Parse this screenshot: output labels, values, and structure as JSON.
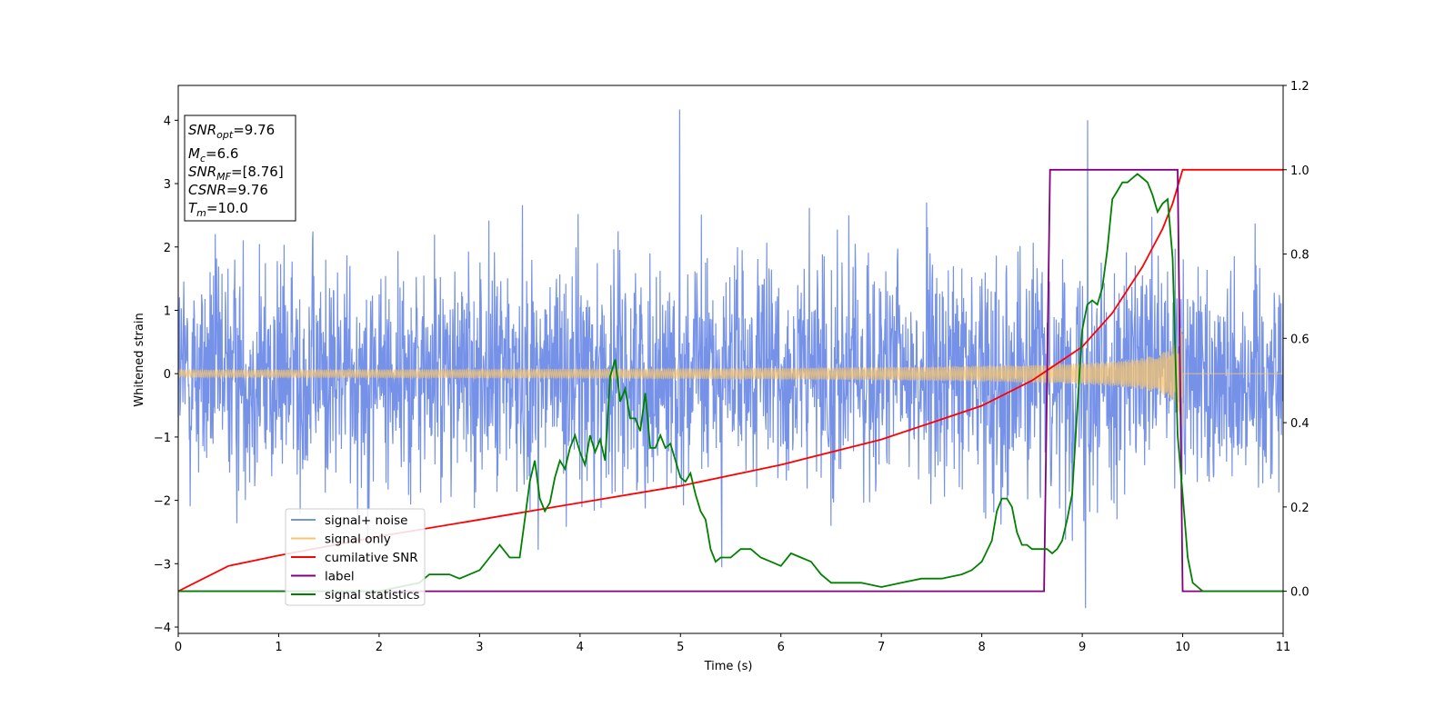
{
  "chart_data": {
    "type": "line",
    "xlabel": "Time (s)",
    "ylabel": "Whitened strain",
    "xlim": [
      0,
      11
    ],
    "ylim_left": [
      -4.1,
      4.55
    ],
    "ylim_right": [
      -0.1,
      1.2
    ],
    "x_ticks": [
      "0",
      "1",
      "2",
      "3",
      "4",
      "5",
      "6",
      "7",
      "8",
      "9",
      "10",
      "11"
    ],
    "y_left_ticks": [
      "4",
      "3",
      "2",
      "1",
      "0",
      "−1",
      "−2",
      "−3",
      "−4"
    ],
    "y_left_tick_values": [
      4,
      3,
      2,
      1,
      0,
      -1,
      -2,
      -3,
      -4
    ],
    "y_right_ticks": [
      "1.2",
      "1.0",
      "0.8",
      "0.6",
      "0.4",
      "0.2",
      "0.0"
    ],
    "y_right_tick_values": [
      1.2,
      1.0,
      0.8,
      0.6,
      0.4,
      0.2,
      0.0
    ],
    "annotation_box": {
      "snr_opt_base": "SNR",
      "snr_opt_sub": "opt",
      "snr_opt_value": "=9.76",
      "mc_base": "M",
      "mc_sub": "c",
      "mc_value": "=6.6",
      "snr_mf_base": "SNR",
      "snr_mf_sub": "MF",
      "snr_mf_value": "=[8.76]",
      "csnr_base": "CSNR",
      "csnr_value": "=9.76",
      "tm_base": "T",
      "tm_sub": "m",
      "tm_value": "=10.0"
    },
    "legend_placement": "lower-left",
    "series": [
      {
        "name": "signal+ noise",
        "axis": "left",
        "color": "#7692e8",
        "description_stats": {
          "std": 0.95,
          "min": -3.7,
          "max": 4.17
        }
      },
      {
        "name": "signal only",
        "axis": "left",
        "color": "#f5c470",
        "chirp_merger_time": 10.0,
        "amplitude_start": 0.06,
        "amplitude_peak": 0.85
      },
      {
        "name": "cumilative SNR",
        "axis": "right",
        "color": "#ff0000",
        "x": [
          0,
          0.5,
          1,
          2,
          3,
          4,
          5,
          6,
          7,
          7.5,
          8,
          8.5,
          9,
          9.3,
          9.6,
          9.8,
          9.9,
          10.0,
          10.01,
          11
        ],
        "y": [
          0.0,
          0.06,
          0.085,
          0.13,
          0.17,
          0.21,
          0.25,
          0.3,
          0.36,
          0.4,
          0.44,
          0.5,
          0.58,
          0.66,
          0.77,
          0.86,
          0.92,
          1.0,
          1.0,
          1.0
        ]
      },
      {
        "name": "label",
        "axis": "right",
        "color": "#800080",
        "x": [
          0,
          8.62,
          8.68,
          9.95,
          10.0,
          11
        ],
        "y": [
          0,
          0,
          1,
          1,
          0,
          0
        ]
      },
      {
        "name": "signal statistics",
        "axis": "right",
        "color": "#008000",
        "x": [
          0,
          0.3,
          1.0,
          2.0,
          2.4,
          2.5,
          2.6,
          2.7,
          2.8,
          2.9,
          3.0,
          3.1,
          3.2,
          3.3,
          3.4,
          3.45,
          3.5,
          3.55,
          3.6,
          3.65,
          3.7,
          3.75,
          3.8,
          3.85,
          3.9,
          3.95,
          4.0,
          4.05,
          4.1,
          4.15,
          4.2,
          4.25,
          4.3,
          4.35,
          4.4,
          4.45,
          4.5,
          4.55,
          4.6,
          4.65,
          4.7,
          4.75,
          4.8,
          4.85,
          4.9,
          4.95,
          5.0,
          5.05,
          5.1,
          5.15,
          5.2,
          5.25,
          5.3,
          5.35,
          5.4,
          5.5,
          5.6,
          5.7,
          5.8,
          5.9,
          6.0,
          6.1,
          6.2,
          6.3,
          6.4,
          6.5,
          6.6,
          6.8,
          7.0,
          7.2,
          7.4,
          7.6,
          7.8,
          7.9,
          8.0,
          8.1,
          8.15,
          8.2,
          8.25,
          8.3,
          8.35,
          8.4,
          8.45,
          8.5,
          8.55,
          8.6,
          8.65,
          8.7,
          8.75,
          8.8,
          8.85,
          8.9,
          8.95,
          9.0,
          9.05,
          9.1,
          9.15,
          9.2,
          9.25,
          9.3,
          9.35,
          9.4,
          9.45,
          9.5,
          9.55,
          9.6,
          9.65,
          9.7,
          9.75,
          9.8,
          9.85,
          9.9,
          9.95,
          10.0,
          10.05,
          10.1,
          10.15,
          10.2,
          10.3,
          11
        ],
        "y": [
          0.0,
          0.0,
          0.0,
          0.0,
          0.02,
          0.04,
          0.04,
          0.04,
          0.03,
          0.04,
          0.05,
          0.08,
          0.11,
          0.08,
          0.08,
          0.17,
          0.26,
          0.31,
          0.22,
          0.19,
          0.21,
          0.27,
          0.31,
          0.29,
          0.34,
          0.37,
          0.33,
          0.3,
          0.37,
          0.33,
          0.36,
          0.31,
          0.51,
          0.55,
          0.45,
          0.48,
          0.41,
          0.41,
          0.38,
          0.47,
          0.34,
          0.34,
          0.37,
          0.34,
          0.35,
          0.31,
          0.27,
          0.26,
          0.28,
          0.23,
          0.19,
          0.17,
          0.1,
          0.07,
          0.08,
          0.08,
          0.1,
          0.1,
          0.08,
          0.07,
          0.06,
          0.09,
          0.08,
          0.07,
          0.04,
          0.02,
          0.02,
          0.02,
          0.01,
          0.02,
          0.03,
          0.03,
          0.04,
          0.05,
          0.07,
          0.12,
          0.19,
          0.22,
          0.22,
          0.2,
          0.14,
          0.11,
          0.11,
          0.1,
          0.1,
          0.1,
          0.1,
          0.09,
          0.1,
          0.12,
          0.17,
          0.23,
          0.43,
          0.62,
          0.68,
          0.69,
          0.68,
          0.72,
          0.81,
          0.93,
          0.95,
          0.97,
          0.97,
          0.98,
          0.99,
          0.98,
          0.97,
          0.94,
          0.9,
          0.92,
          0.93,
          0.79,
          0.37,
          0.23,
          0.08,
          0.02,
          0.01,
          0.0,
          0.0,
          0.0
        ]
      }
    ]
  }
}
